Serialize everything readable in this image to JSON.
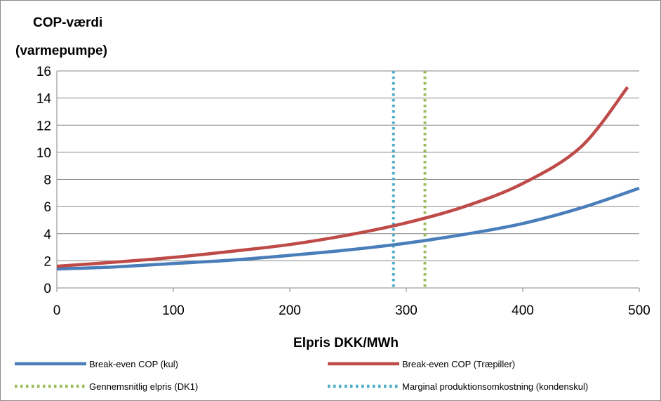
{
  "chart_data": {
    "type": "line",
    "ylabel_lines": [
      "COP-værdi",
      "(varmepumpe)"
    ],
    "xlabel": "Elpris DKK/MWh",
    "xlim": [
      0,
      500
    ],
    "ylim": [
      0,
      16
    ],
    "x_ticks": [
      "0",
      "100",
      "200",
      "300",
      "400",
      "500"
    ],
    "y_ticks": [
      "0",
      "2",
      "4",
      "6",
      "8",
      "10",
      "12",
      "14",
      "16"
    ],
    "grid": "horizontal",
    "legend_position": "bottom",
    "series": [
      {
        "name": "Break-even COP (kul)",
        "color": "#4a7ebb",
        "style": "solid",
        "x": [
          0,
          50,
          100,
          150,
          200,
          250,
          300,
          350,
          400,
          450,
          500
        ],
        "y": [
          1.4,
          1.55,
          1.8,
          2.05,
          2.4,
          2.8,
          3.3,
          3.95,
          4.75,
          5.9,
          7.35
        ]
      },
      {
        "name": "Break-even COP (Træpiller)",
        "color": "#be4b48",
        "style": "solid",
        "x": [
          0,
          50,
          100,
          150,
          200,
          250,
          300,
          350,
          400,
          450,
          490
        ],
        "y": [
          1.6,
          1.9,
          2.25,
          2.7,
          3.2,
          3.9,
          4.8,
          6.0,
          7.7,
          10.4,
          14.8
        ]
      }
    ],
    "vertical_lines": [
      {
        "name": "Gennemsnitlig elpris (DK1)",
        "x": 316,
        "color": "#9bbb59",
        "style": "dotted"
      },
      {
        "name": "Marginal produktionsomkostning (kondenskul)",
        "x": 289,
        "color": "#4bacc6",
        "style": "dotted"
      }
    ]
  }
}
